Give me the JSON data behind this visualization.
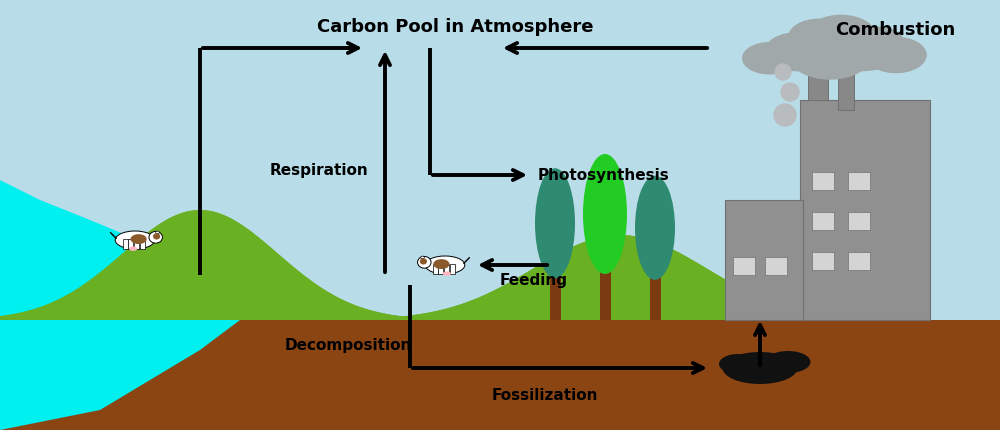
{
  "fig_width": 10.0,
  "fig_height": 4.31,
  "dpi": 100,
  "sky_color": "#b8dce8",
  "hill_color": "#6ab023",
  "ground_color": "#8B4513",
  "river_color": "#00EFEF",
  "labels": {
    "atmosphere": "Carbon Pool in Atmosphere",
    "combustion": "Combustion",
    "photosynthesis": "Photosynthesis",
    "respiration": "Respiration",
    "feeding": "Feeding",
    "decomposition": "Decomposition",
    "fossilization": "Fossilization"
  },
  "text_color": "black",
  "font_size_labels": 11,
  "font_size_main": 13,
  "lw_arrow": 2.8,
  "cloud_color": "#a0a8aa",
  "factory_color": "#909090",
  "factory_dark": "#707070",
  "window_color": "#d4d4d4",
  "chimney_color": "#888888",
  "smoke_color": "#b8bcbe",
  "trunk_color": "#7B3A10",
  "tree_teal": "#2e8a70",
  "tree_green": "#22cc22",
  "fossil_color": "#111111"
}
